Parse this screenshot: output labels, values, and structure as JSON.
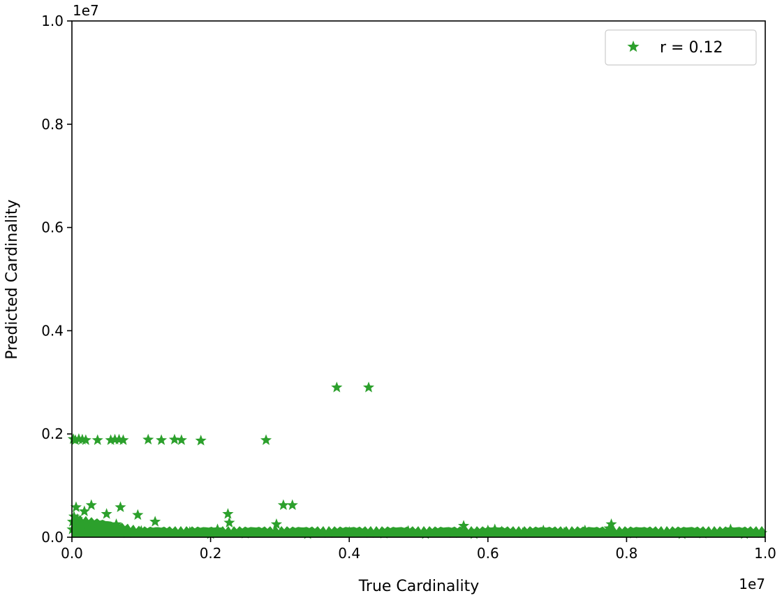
{
  "chart_data": {
    "type": "scatter",
    "xlabel": "True Cardinality",
    "ylabel": "Predicted Cardinality",
    "x_offset_label": "1e7",
    "y_offset_label": "1e7",
    "xlim": [
      0,
      10000000
    ],
    "ylim": [
      0,
      10000000
    ],
    "x_ticks": [
      0,
      2000000,
      4000000,
      6000000,
      8000000,
      10000000
    ],
    "x_tick_labels": [
      "0.0",
      "0.2",
      "0.4",
      "0.6",
      "0.8",
      "1.0"
    ],
    "y_ticks": [
      0,
      2000000,
      4000000,
      6000000,
      8000000,
      10000000
    ],
    "y_tick_labels": [
      "0.0",
      "0.2",
      "0.4",
      "0.6",
      "0.8",
      "1.0"
    ],
    "grid": false,
    "legend_position": "top-right",
    "series": [
      {
        "name": "r = 0.12",
        "color": "#2ca02c",
        "marker": "star",
        "x": [
          20000,
          50000,
          100000,
          150000,
          200000,
          370000,
          560000,
          620000,
          680000,
          740000,
          1100000,
          1290000,
          1480000,
          1580000,
          1860000,
          2800000,
          3820000,
          4280000,
          3050000,
          3180000,
          2250000,
          1200000,
          950000,
          700000,
          640000,
          500000,
          280000,
          180000,
          60000,
          30000,
          10000,
          5000,
          80000,
          120000,
          250000,
          350000,
          450000,
          800000,
          1000000,
          1400000,
          1700000,
          2000000,
          2100000,
          2500000,
          2950000,
          3400000,
          3700000,
          4000000,
          4500000,
          4850000,
          5100000,
          5500000,
          5650000,
          6000000,
          6100000,
          6200000,
          6500000,
          6800000,
          7100000,
          7400000,
          7750000,
          7780000,
          8100000,
          8500000,
          8800000,
          9100000,
          9500000,
          9700000,
          9950000,
          2270000,
          2950000,
          5800000,
          4300000
        ],
        "y": [
          1900000,
          1880000,
          1900000,
          1890000,
          1880000,
          1880000,
          1880000,
          1890000,
          1890000,
          1880000,
          1890000,
          1880000,
          1890000,
          1880000,
          1870000,
          1880000,
          2900000,
          2900000,
          620000,
          620000,
          450000,
          300000,
          430000,
          580000,
          250000,
          450000,
          620000,
          500000,
          580000,
          400000,
          300000,
          150000,
          350000,
          200000,
          150000,
          120000,
          100000,
          80000,
          120000,
          90000,
          100000,
          60000,
          150000,
          70000,
          90000,
          60000,
          80000,
          100000,
          70000,
          120000,
          60000,
          80000,
          220000,
          130000,
          150000,
          110000,
          80000,
          130000,
          90000,
          130000,
          170000,
          250000,
          70000,
          90000,
          60000,
          70000,
          150000,
          60000,
          80000,
          280000,
          250000,
          60000,
          80000
        ]
      }
    ]
  }
}
